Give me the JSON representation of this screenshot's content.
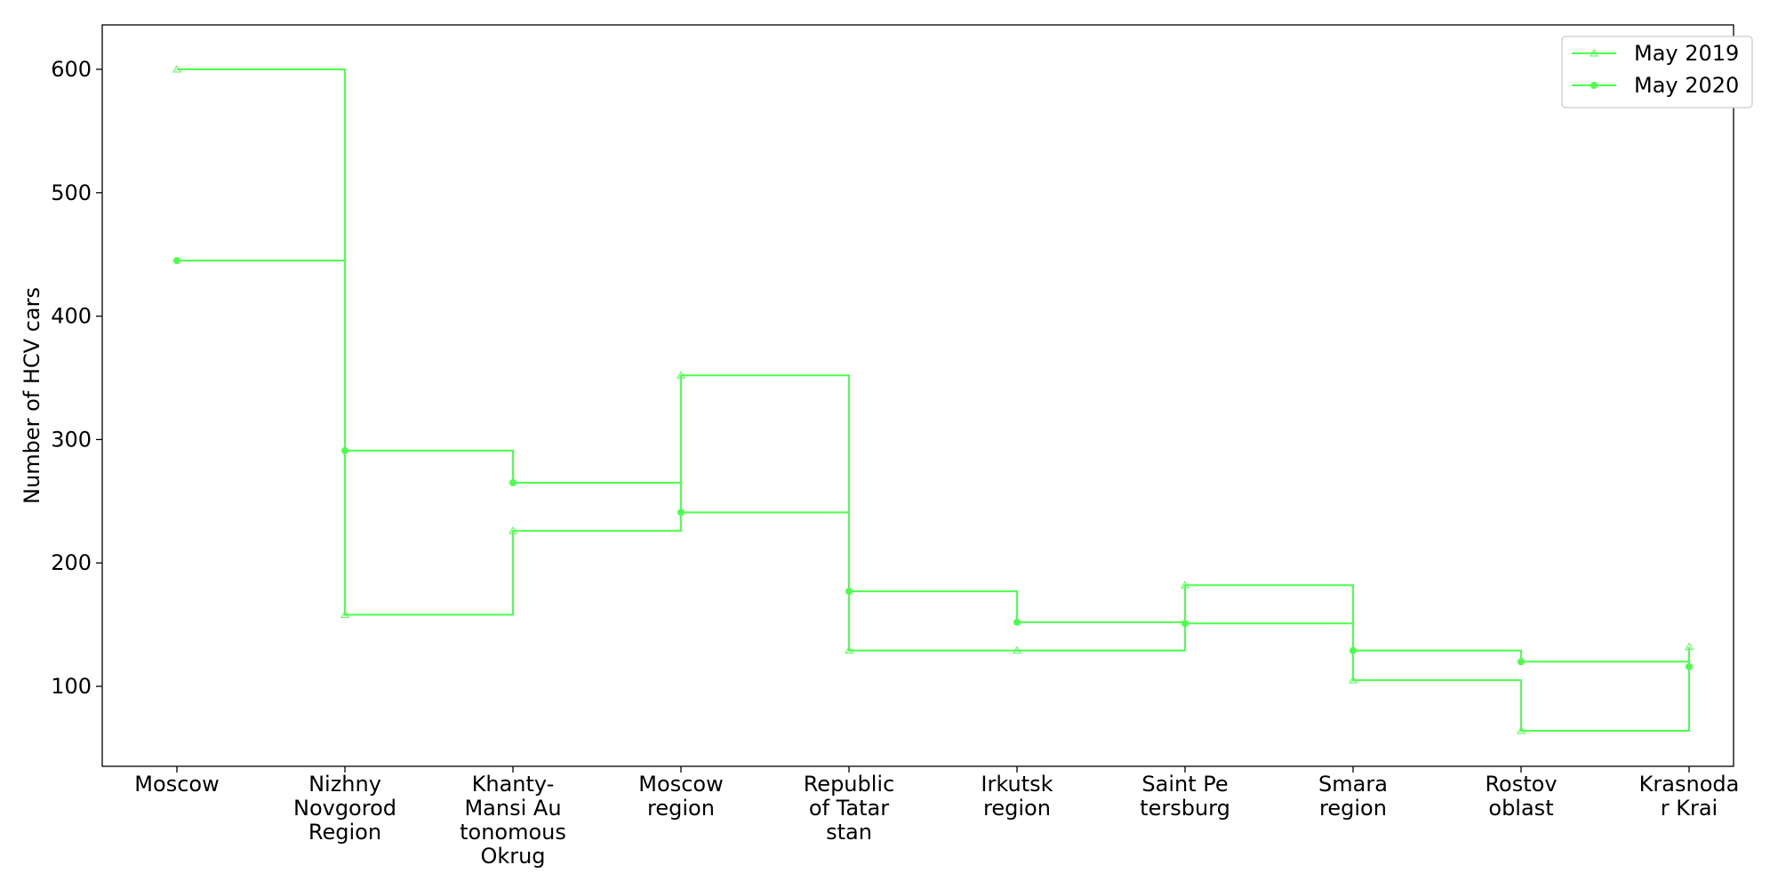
{
  "chart_data": {
    "type": "line",
    "step": "post",
    "categories": [
      [
        "Moscow"
      ],
      [
        "Nizhny",
        "Novgorod",
        "Region"
      ],
      [
        "Khanty-",
        "Mansi Au",
        "tonomous",
        "Okrug"
      ],
      [
        "Moscow",
        "region"
      ],
      [
        "Republic",
        "of Tatar",
        "stan"
      ],
      [
        "Irkutsk",
        "region"
      ],
      [
        "Saint Pe",
        "tersburg"
      ],
      [
        "Smara",
        "region"
      ],
      [
        "Rostov",
        "oblast"
      ],
      [
        "Krasnoda",
        "r Krai"
      ]
    ],
    "series": [
      {
        "name": "May 2019",
        "marker": "tri",
        "color": "#4cff4c",
        "values": [
          600,
          158,
          226,
          352,
          129,
          129,
          182,
          105,
          64,
          132
        ]
      },
      {
        "name": "May 2020",
        "marker": "dot",
        "color": "#4cff4c",
        "values": [
          445,
          291,
          265,
          241,
          177,
          152,
          151,
          129,
          120,
          116
        ]
      }
    ],
    "ylabel": "Number of HCV cars",
    "xlabel": "",
    "title": "",
    "ylim": [
      35.2,
      636
    ],
    "yticks": [
      100,
      200,
      300,
      400,
      500,
      600
    ],
    "grid": false,
    "legend": "top-right"
  }
}
